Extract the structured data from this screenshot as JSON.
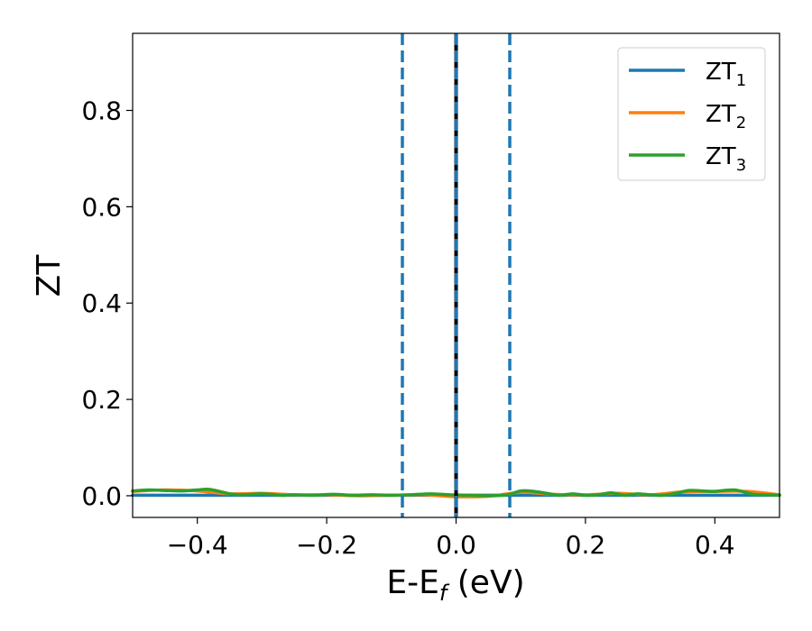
{
  "chart_data": {
    "type": "line",
    "title": "",
    "xlabel": {
      "base": "E-E",
      "sub": "f",
      "rest": " (eV)"
    },
    "ylabel": "ZT",
    "xlim": [
      -0.5,
      0.5
    ],
    "ylim": [
      -0.045,
      0.96
    ],
    "xticks": [
      -0.4,
      -0.2,
      0.0,
      0.2,
      0.4
    ],
    "xtick_labels": [
      "−0.4",
      "−0.2",
      "0.0",
      "0.2",
      "0.4"
    ],
    "yticks": [
      0.0,
      0.2,
      0.4,
      0.6,
      0.8
    ],
    "ytick_labels": [
      "0.0",
      "0.2",
      "0.4",
      "0.6",
      "0.8"
    ],
    "grid": false,
    "legend_position": "top-right",
    "series": [
      {
        "name": {
          "base": "ZT",
          "sub": "1"
        },
        "color": "#1f77b4",
        "x": [
          -0.5,
          -0.3,
          -0.1,
          0.0,
          0.1,
          0.3,
          0.5
        ],
        "y": [
          0.001,
          0.001,
          0.001,
          0.001,
          0.001,
          0.001,
          0.001
        ]
      },
      {
        "name": {
          "base": "ZT",
          "sub": "2"
        },
        "color": "#ff7f0e",
        "x": [
          -0.5,
          -0.45,
          -0.4,
          -0.35,
          -0.3,
          -0.25,
          -0.2,
          -0.15,
          -0.1,
          -0.05,
          0.0,
          0.05,
          0.1,
          0.15,
          0.2,
          0.25,
          0.3,
          0.35,
          0.4,
          0.45,
          0.5
        ],
        "y": [
          0.009,
          0.012,
          0.01,
          0.004,
          0.005,
          0.002,
          0.002,
          0.0,
          0.001,
          0.002,
          -0.002,
          -0.001,
          0.007,
          0.003,
          0.002,
          0.005,
          0.002,
          0.008,
          0.009,
          0.009,
          0.002
        ]
      },
      {
        "name": {
          "base": "ZT",
          "sub": "3"
        },
        "color": "#2ca02c",
        "x": [
          -0.5,
          -0.475,
          -0.45,
          -0.425,
          -0.4,
          -0.38,
          -0.35,
          -0.33,
          -0.3,
          -0.27,
          -0.25,
          -0.22,
          -0.19,
          -0.16,
          -0.13,
          -0.1,
          -0.07,
          -0.04,
          -0.01,
          0.02,
          0.05,
          0.08,
          0.1,
          0.12,
          0.14,
          0.16,
          0.18,
          0.2,
          0.22,
          0.24,
          0.26,
          0.28,
          0.3,
          0.32,
          0.34,
          0.36,
          0.38,
          0.4,
          0.43,
          0.46,
          0.48,
          0.5
        ],
        "y": [
          0.01,
          0.012,
          0.011,
          0.01,
          0.012,
          0.013,
          0.004,
          0.002,
          0.004,
          0.001,
          0.002,
          0.001,
          0.003,
          0.001,
          0.002,
          0.001,
          0.002,
          0.004,
          0.002,
          0.001,
          0.0,
          0.002,
          0.01,
          0.009,
          0.005,
          0.001,
          0.004,
          0.001,
          0.002,
          0.006,
          0.001,
          0.004,
          0.002,
          0.001,
          0.005,
          0.011,
          0.01,
          0.009,
          0.012,
          0.003,
          0.002,
          0.001
        ]
      }
    ],
    "vlines": [
      {
        "x": -0.083,
        "style": "dashed",
        "color": "#1f77b4"
      },
      {
        "x": 0.0,
        "style": "solid",
        "color": "#000000"
      },
      {
        "x": 0.0,
        "style": "dashed",
        "color": "#1f77b4"
      },
      {
        "x": 0.083,
        "style": "dashed",
        "color": "#1f77b4"
      }
    ]
  }
}
